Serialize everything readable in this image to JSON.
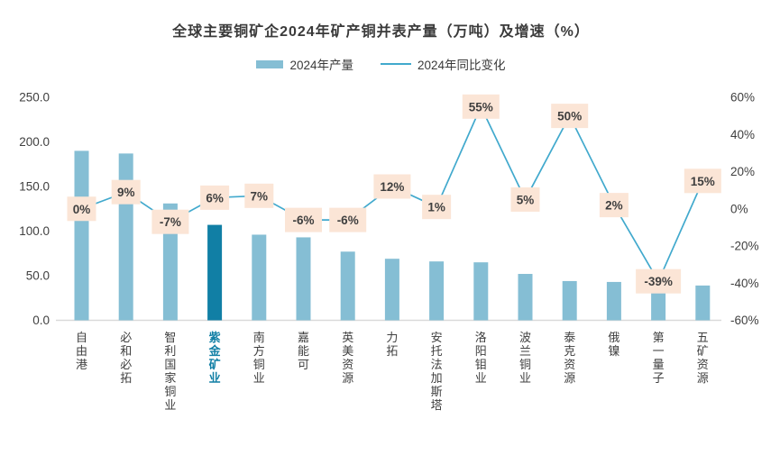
{
  "title": "全球主要铜矿企2024年矿产铜并表产量（万吨）及增速（%）",
  "legend": {
    "production_label": "2024年产量",
    "growth_label": "2024年同比变化"
  },
  "colors": {
    "bar": "#85BED4",
    "bar_highlight": "#117FA5",
    "line": "#41A9CD",
    "label_bg": "#FBE5D6",
    "label_text": "#3F3F3F",
    "axis_text": "#404040",
    "baseline": "#D9D9D9",
    "highlight_category_text": "#1380A6"
  },
  "chart_data": {
    "type": "bar",
    "title": "全球主要铜矿企2024年矿产铜并表产量（万吨）及增速（%）",
    "categories": [
      "自由港",
      "必和必拓",
      "智利国家铜业",
      "紫金矿业",
      "南方铜业",
      "嘉能可",
      "英美资源",
      "力拓",
      "安托法加斯塔",
      "洛阳钼业",
      "波兰铜业",
      "泰克资源",
      "俄镍",
      "第一量子",
      "五矿资源"
    ],
    "highlight_index": 3,
    "series": [
      {
        "name": "2024年产量",
        "type": "bar",
        "axis": "left",
        "unit": "万吨",
        "values": [
          190,
          187,
          131,
          107,
          96,
          93,
          77,
          69,
          66,
          65,
          52,
          44,
          43,
          43,
          39
        ]
      },
      {
        "name": "2024年同比变化",
        "type": "line",
        "axis": "right",
        "unit": "%",
        "values": [
          0,
          9,
          -7,
          6,
          7,
          -6,
          -6,
          12,
          1,
          55,
          5,
          50,
          2,
          -39,
          15
        ],
        "labels": [
          "0%",
          "9%",
          "-7%",
          "6%",
          "7%",
          "-6%",
          "-6%",
          "12%",
          "1%",
          "55%",
          "5%",
          "50%",
          "2%",
          "-39%",
          "15%"
        ]
      }
    ],
    "left_axis": {
      "min": 0,
      "max": 250,
      "step": 50,
      "tick_labels": [
        "0.0",
        "50.0",
        "100.0",
        "150.0",
        "200.0",
        "250.0"
      ]
    },
    "right_axis": {
      "min": -60,
      "max": 60,
      "step": 20,
      "tick_labels": [
        "-60%",
        "-40%",
        "-20%",
        "0%",
        "20%",
        "40%",
        "60%"
      ]
    },
    "grid": false,
    "legend_position": "top"
  }
}
